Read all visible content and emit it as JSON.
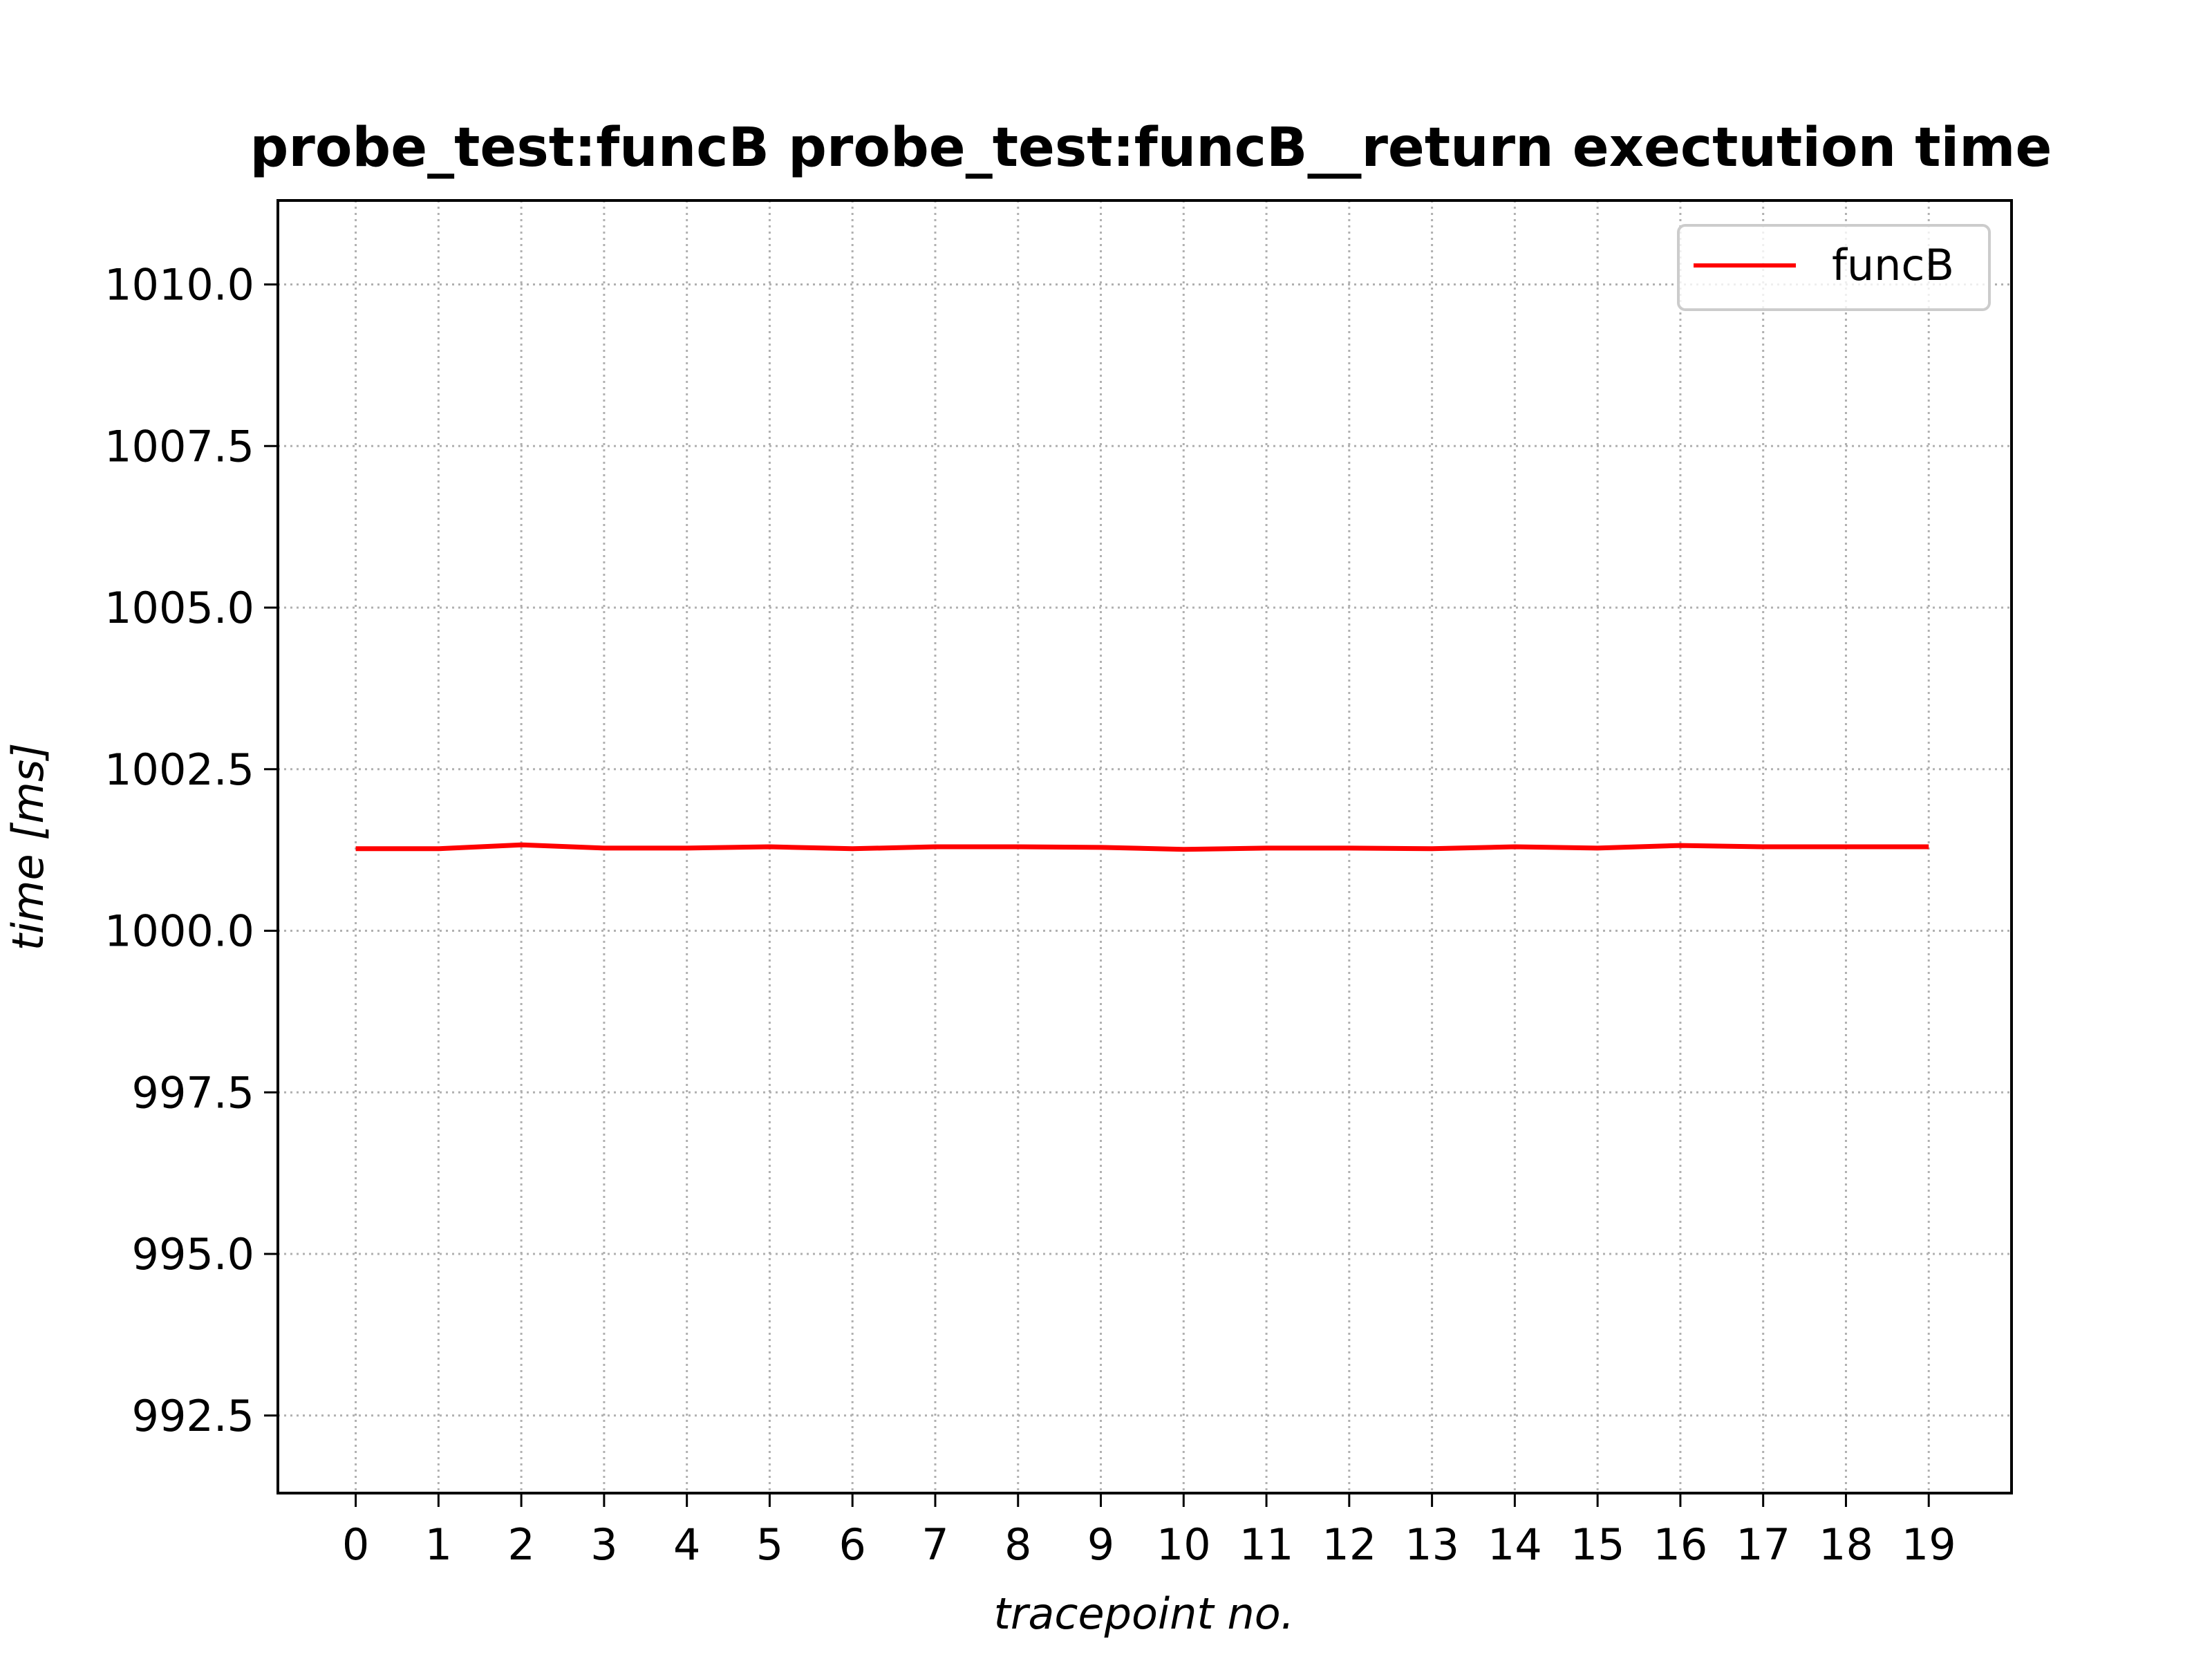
{
  "chart_data": {
    "type": "line",
    "title": "probe_test:funcB probe_test:funcB__return exectution time",
    "xlabel": "tracepoint no.",
    "ylabel": "time [ms]",
    "x": [
      0,
      1,
      2,
      3,
      4,
      5,
      6,
      7,
      8,
      9,
      10,
      11,
      12,
      13,
      14,
      15,
      16,
      17,
      18,
      19
    ],
    "xticks": [
      0,
      1,
      2,
      3,
      4,
      5,
      6,
      7,
      8,
      9,
      10,
      11,
      12,
      13,
      14,
      15,
      16,
      17,
      18,
      19
    ],
    "xlim": [
      -0.94,
      20.0
    ],
    "yticks": [
      992.5,
      995.0,
      997.5,
      1000.0,
      1002.5,
      1005.0,
      1007.5,
      1010.0
    ],
    "ytick_labels": [
      "992.5",
      "995.0",
      "997.5",
      "1000.0",
      "1002.5",
      "1005.0",
      "1007.5",
      "1010.0"
    ],
    "ylim": [
      991.3,
      1011.3
    ],
    "grid": true,
    "legend_position": "top-right",
    "series": [
      {
        "name": "funcB",
        "color": "#ff0000",
        "values": [
          1001.27,
          1001.27,
          1001.33,
          1001.28,
          1001.28,
          1001.3,
          1001.27,
          1001.3,
          1001.3,
          1001.29,
          1001.26,
          1001.28,
          1001.28,
          1001.27,
          1001.3,
          1001.28,
          1001.32,
          1001.3,
          1001.3,
          1001.3
        ]
      }
    ]
  }
}
